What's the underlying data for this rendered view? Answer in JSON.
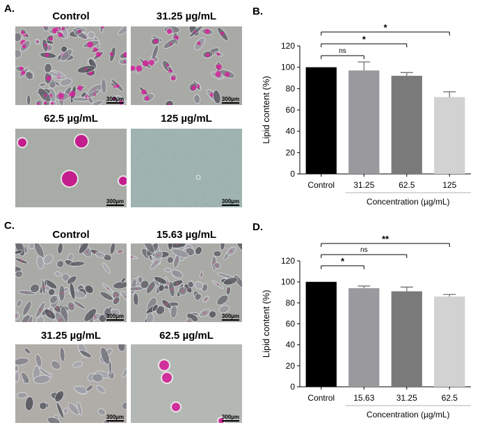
{
  "panels": {
    "A": {
      "letter": "A.",
      "images": [
        {
          "label": "Control",
          "scale": "300µm",
          "style": "dense-pink"
        },
        {
          "label": "31.25 µg/mL",
          "scale": "300µm",
          "style": "sparse-pink"
        },
        {
          "label": "62.5 µg/mL",
          "scale": "300µm",
          "style": "few-cells"
        },
        {
          "label": "125 µg/mL",
          "scale": "300µm",
          "style": "empty"
        }
      ]
    },
    "C": {
      "letter": "C.",
      "images": [
        {
          "label": "Control",
          "scale": "300µm",
          "style": "dense-grey"
        },
        {
          "label": "15.63 µg/mL",
          "scale": "300µm",
          "style": "dense-grey"
        },
        {
          "label": "31.25 µg/mL",
          "scale": "300µm",
          "style": "flat-grey"
        },
        {
          "label": "62.5 µg/mL",
          "scale": "300µm",
          "style": "few-cells"
        }
      ]
    }
  },
  "chart_data": [
    {
      "panel": "B.",
      "type": "bar",
      "categories": [
        "Control",
        "31.25",
        "62.5",
        "125"
      ],
      "values": [
        100,
        97,
        92,
        72
      ],
      "errors": [
        0,
        8,
        3,
        5
      ],
      "colors": [
        "#000000",
        "#9a9a9e",
        "#7a7a7a",
        "#d2d2d2"
      ],
      "xlabel": "Concentration (µg/mL)",
      "ylabel": "Lipid content (%)",
      "ylim": [
        0,
        120
      ],
      "yticks": [
        0,
        20,
        40,
        60,
        80,
        100,
        120
      ],
      "significance": [
        {
          "from": 0,
          "to": 1,
          "label": "ns"
        },
        {
          "from": 0,
          "to": 2,
          "label": "*"
        },
        {
          "from": 0,
          "to": 3,
          "label": "*"
        }
      ]
    },
    {
      "panel": "D.",
      "type": "bar",
      "categories": [
        "Control",
        "15.63",
        "31.25",
        "62.5"
      ],
      "values": [
        100,
        94,
        91,
        86
      ],
      "errors": [
        0,
        2,
        4,
        2
      ],
      "colors": [
        "#000000",
        "#9a9a9e",
        "#7a7a7a",
        "#d2d2d2"
      ],
      "xlabel": "Concentration (µg/mL)",
      "ylabel": "Lipid content (%)",
      "ylim": [
        0,
        120
      ],
      "yticks": [
        0,
        20,
        40,
        60,
        80,
        100,
        120
      ],
      "significance": [
        {
          "from": 0,
          "to": 1,
          "label": "*"
        },
        {
          "from": 0,
          "to": 2,
          "label": "ns"
        },
        {
          "from": 0,
          "to": 3,
          "label": "**"
        }
      ]
    }
  ]
}
